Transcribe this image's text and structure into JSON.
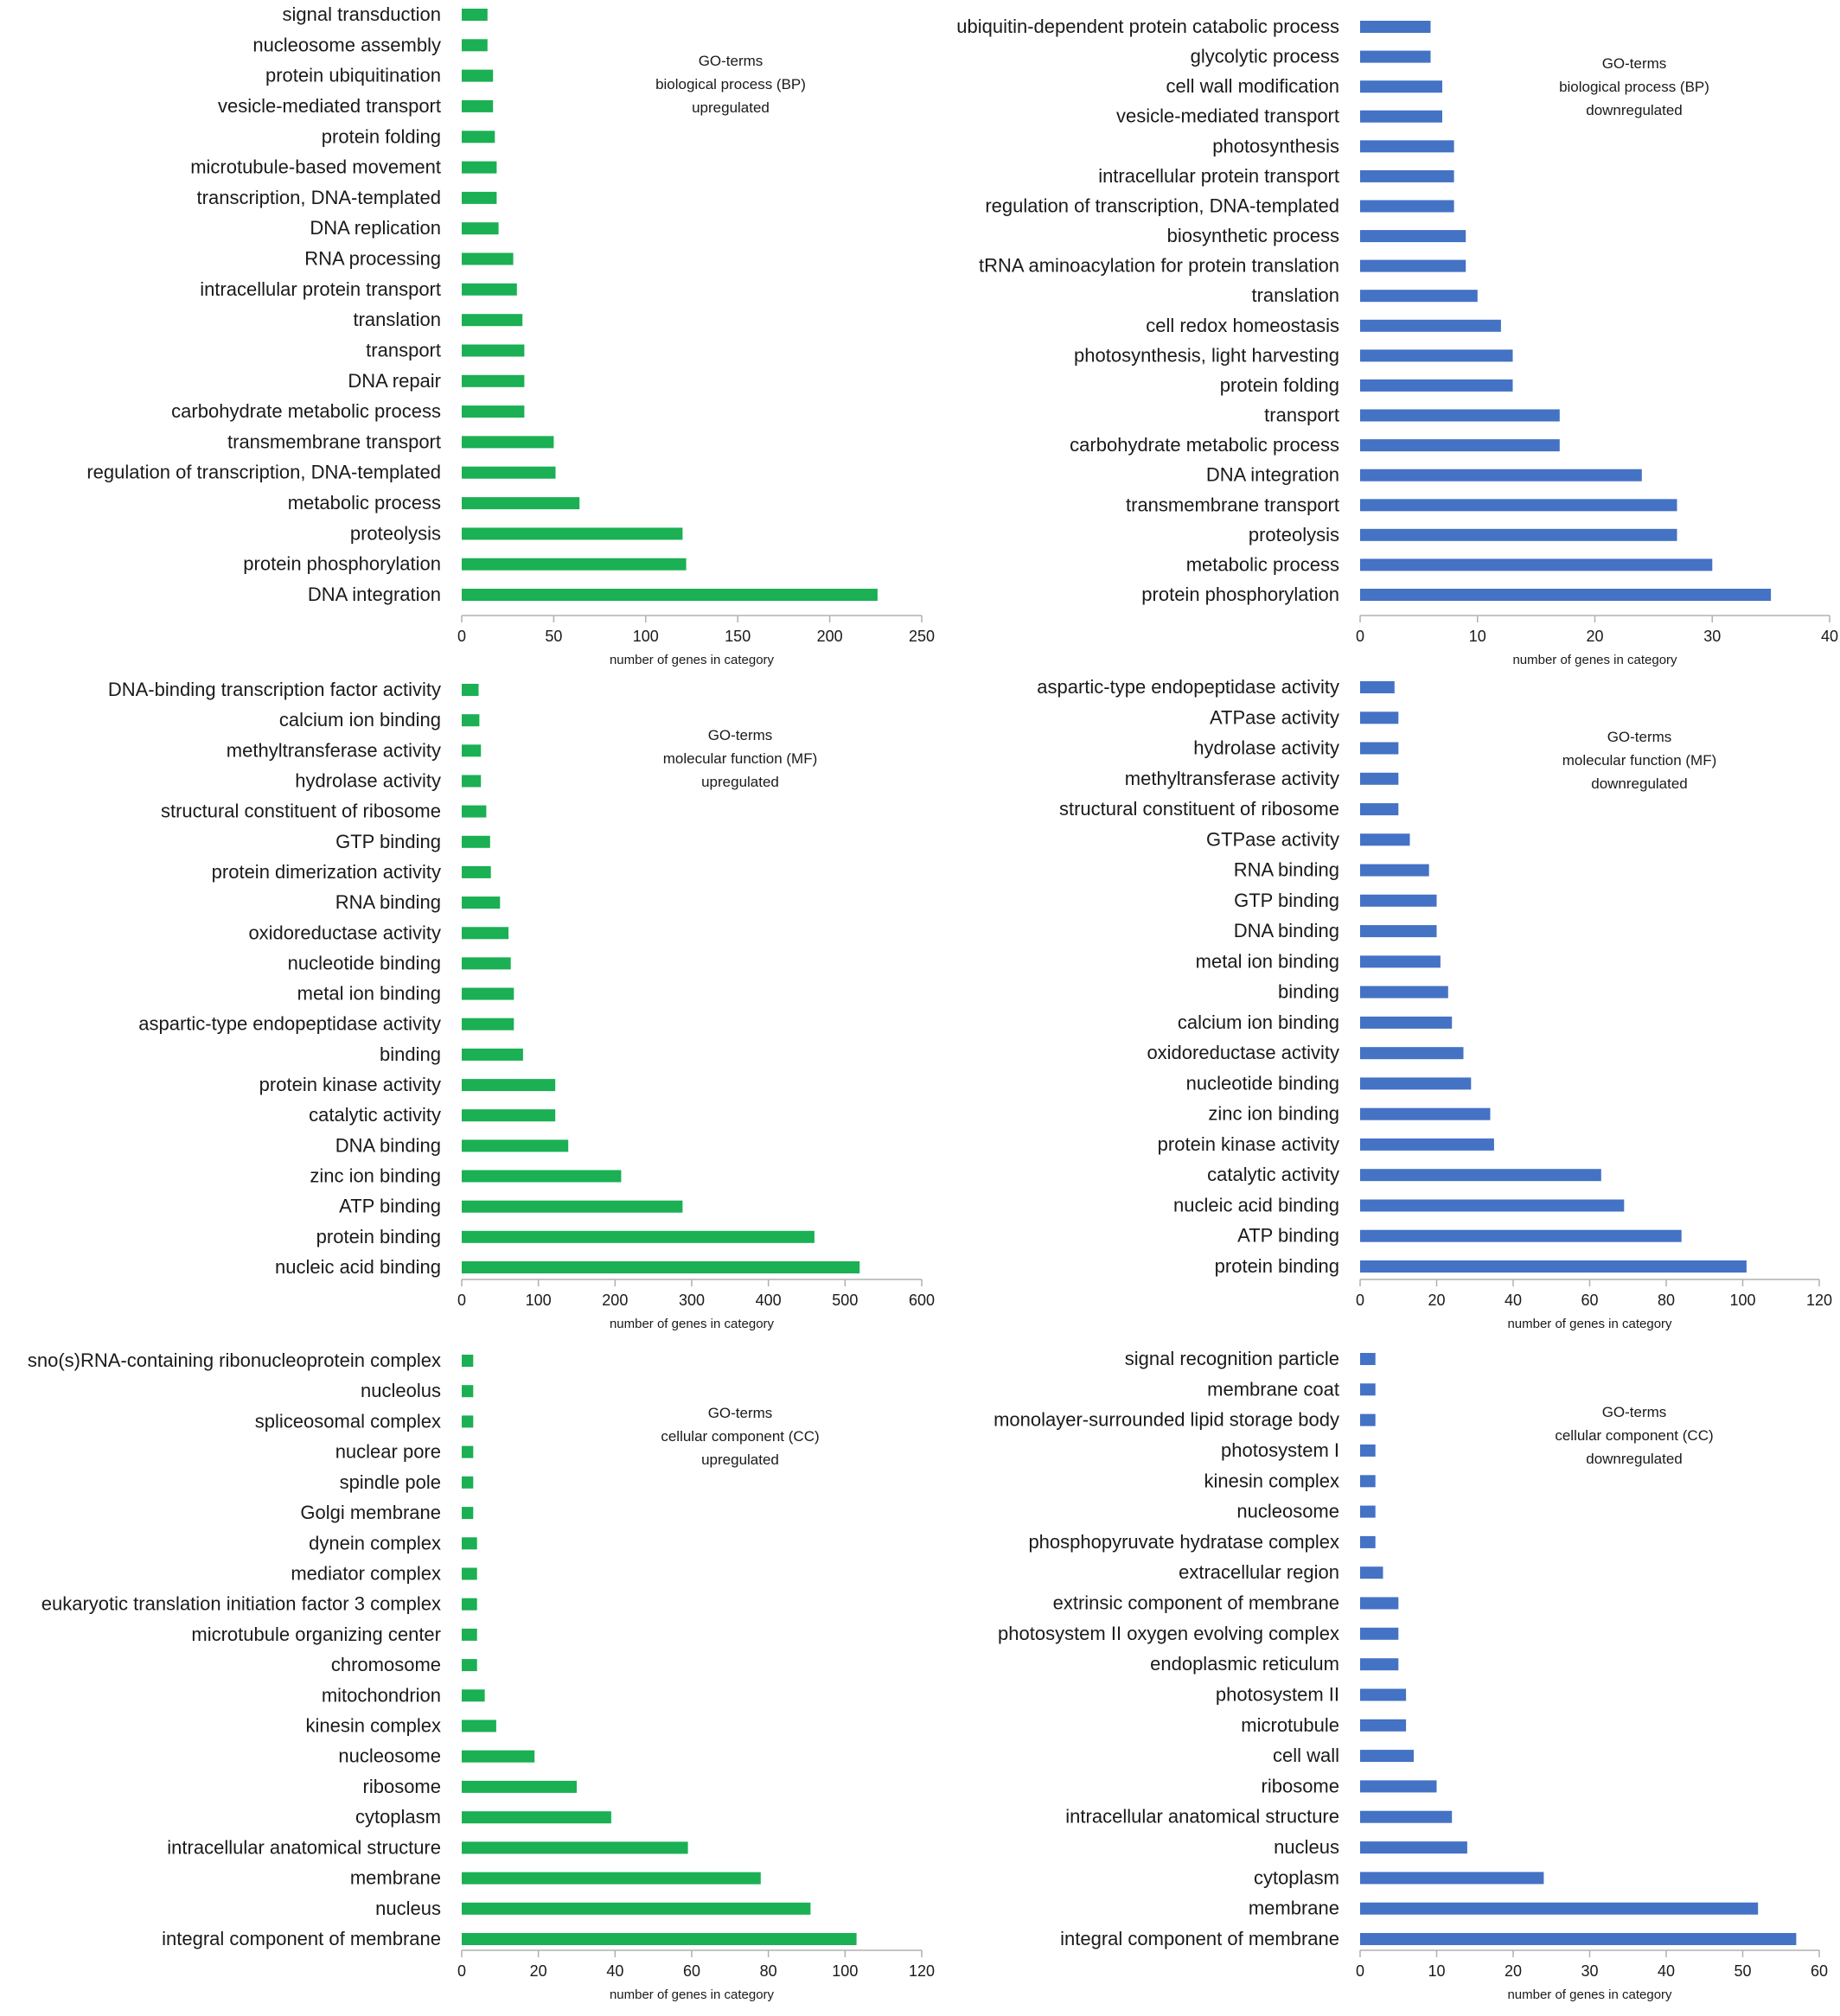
{
  "chart_data": [
    {
      "type": "bar",
      "orientation": "horizontal",
      "annotation": [
        "GO-terms",
        "biological process (BP)",
        "upregulated"
      ],
      "xlabel": "number of genes in category",
      "xlim": [
        0,
        250
      ],
      "xticks": [
        0,
        50,
        100,
        150,
        200,
        250
      ],
      "color": "#1ab053",
      "categories": [
        "signal transduction",
        "nucleosome assembly",
        "protein ubiquitination",
        "vesicle-mediated transport",
        "protein folding",
        "microtubule-based movement",
        "transcription, DNA-templated",
        "DNA replication",
        "RNA processing",
        "intracellular protein transport",
        "translation",
        "transport",
        "DNA repair",
        "carbohydrate metabolic process",
        "transmembrane transport",
        "regulation of transcription, DNA-templated",
        "metabolic process",
        "proteolysis",
        "protein phosphorylation",
        "DNA integration"
      ],
      "values": [
        14,
        14,
        17,
        17,
        18,
        19,
        19,
        20,
        28,
        30,
        33,
        34,
        34,
        34,
        50,
        51,
        64,
        120,
        122,
        226
      ]
    },
    {
      "type": "bar",
      "orientation": "horizontal",
      "annotation": [
        "GO-terms",
        "biological process (BP)",
        "downregulated"
      ],
      "xlabel": "number of genes in category",
      "xlim": [
        0,
        40
      ],
      "xticks": [
        0,
        10,
        20,
        30,
        40
      ],
      "color": "#4472c4",
      "categories": [
        "ubiquitin-dependent protein catabolic process",
        "glycolytic process",
        "cell wall modification",
        "vesicle-mediated transport",
        "photosynthesis",
        "intracellular protein transport",
        "regulation of transcription, DNA-templated",
        "biosynthetic process",
        "tRNA aminoacylation for protein translation",
        "translation",
        "cell redox homeostasis",
        "photosynthesis, light harvesting",
        "protein folding",
        "transport",
        "carbohydrate metabolic process",
        "DNA integration",
        "transmembrane transport",
        "proteolysis",
        "metabolic process",
        "protein phosphorylation"
      ],
      "values": [
        6,
        6,
        7,
        7,
        8,
        8,
        8,
        9,
        9,
        10,
        12,
        13,
        13,
        17,
        17,
        24,
        27,
        27,
        30,
        35
      ]
    },
    {
      "type": "bar",
      "orientation": "horizontal",
      "annotation": [
        "GO-terms",
        "molecular function (MF)",
        "upregulated"
      ],
      "xlabel": "number of genes in category",
      "xlim": [
        0,
        600
      ],
      "xticks": [
        0,
        100,
        200,
        300,
        400,
        500,
        600
      ],
      "color": "#1ab053",
      "categories": [
        "DNA-binding transcription factor activity",
        "calcium ion binding",
        "methyltransferase activity",
        "hydrolase activity",
        "structural constituent of ribosome",
        "GTP binding",
        "protein dimerization activity",
        "RNA binding",
        "oxidoreductase activity",
        "nucleotide binding",
        "metal ion binding",
        "aspartic-type endopeptidase activity",
        "binding",
        "protein kinase activity",
        "catalytic activity",
        "DNA binding",
        "zinc ion binding",
        "ATP binding",
        "protein binding",
        "nucleic acid binding"
      ],
      "values": [
        22,
        23,
        25,
        25,
        32,
        37,
        38,
        50,
        61,
        64,
        68,
        68,
        80,
        122,
        122,
        139,
        208,
        288,
        460,
        519
      ]
    },
    {
      "type": "bar",
      "orientation": "horizontal",
      "annotation": [
        "GO-terms",
        "molecular function (MF)",
        "downregulated"
      ],
      "xlabel": "number of genes in category",
      "xlim": [
        0,
        120
      ],
      "xticks": [
        0,
        20,
        40,
        60,
        80,
        100,
        120
      ],
      "color": "#4472c4",
      "categories": [
        "aspartic-type endopeptidase activity",
        "ATPase activity",
        "hydrolase activity",
        "methyltransferase activity",
        "structural constituent of ribosome",
        "GTPase activity",
        "RNA binding",
        "GTP binding",
        "DNA binding",
        "metal ion binding",
        "binding",
        "calcium ion binding",
        "oxidoreductase activity",
        "nucleotide binding",
        "zinc ion binding",
        "protein kinase activity",
        "catalytic activity",
        "nucleic acid binding",
        "ATP binding",
        "protein binding"
      ],
      "values": [
        9,
        10,
        10,
        10,
        10,
        13,
        18,
        20,
        20,
        21,
        23,
        24,
        27,
        29,
        34,
        35,
        63,
        69,
        84,
        101
      ]
    },
    {
      "type": "bar",
      "orientation": "horizontal",
      "annotation": [
        "GO-terms",
        "cellular component (CC)",
        "upregulated"
      ],
      "xlabel": "number of genes in category",
      "xlim": [
        0,
        120
      ],
      "xticks": [
        0,
        20,
        40,
        60,
        80,
        100,
        120
      ],
      "color": "#1ab053",
      "categories": [
        "sno(s)RNA-containing ribonucleoprotein complex",
        "nucleolus",
        "spliceosomal complex",
        "nuclear pore",
        "spindle pole",
        "Golgi membrane",
        "dynein complex",
        "mediator complex",
        "eukaryotic translation initiation factor 3 complex",
        "microtubule organizing center",
        "chromosome",
        "mitochondrion",
        "kinesin complex",
        "nucleosome",
        "ribosome",
        "cytoplasm",
        "intracellular anatomical structure",
        "membrane",
        "nucleus",
        "integral component of membrane"
      ],
      "values": [
        3,
        3,
        3,
        3,
        3,
        3,
        4,
        4,
        4,
        4,
        4,
        6,
        9,
        19,
        30,
        39,
        59,
        78,
        91,
        103
      ]
    },
    {
      "type": "bar",
      "orientation": "horizontal",
      "annotation": [
        "GO-terms",
        "cellular component (CC)",
        "downregulated"
      ],
      "xlabel": "number of genes in category",
      "xlim": [
        0,
        60
      ],
      "xticks": [
        0,
        10,
        20,
        30,
        40,
        50,
        60
      ],
      "color": "#4472c4",
      "categories": [
        "signal recognition particle",
        "membrane coat",
        "monolayer-surrounded lipid storage body",
        "photosystem I",
        "kinesin complex",
        "nucleosome",
        "phosphopyruvate hydratase complex",
        "extracellular region",
        "extrinsic component of membrane",
        "photosystem II oxygen evolving complex",
        "endoplasmic reticulum",
        "photosystem II",
        "microtubule",
        "cell wall",
        "ribosome",
        "intracellular anatomical structure",
        "nucleus",
        "cytoplasm",
        "membrane",
        "integral component of membrane"
      ],
      "values": [
        2,
        2,
        2,
        2,
        2,
        2,
        2,
        3,
        5,
        5,
        5,
        6,
        6,
        7,
        10,
        12,
        14,
        24,
        52,
        57
      ]
    }
  ]
}
